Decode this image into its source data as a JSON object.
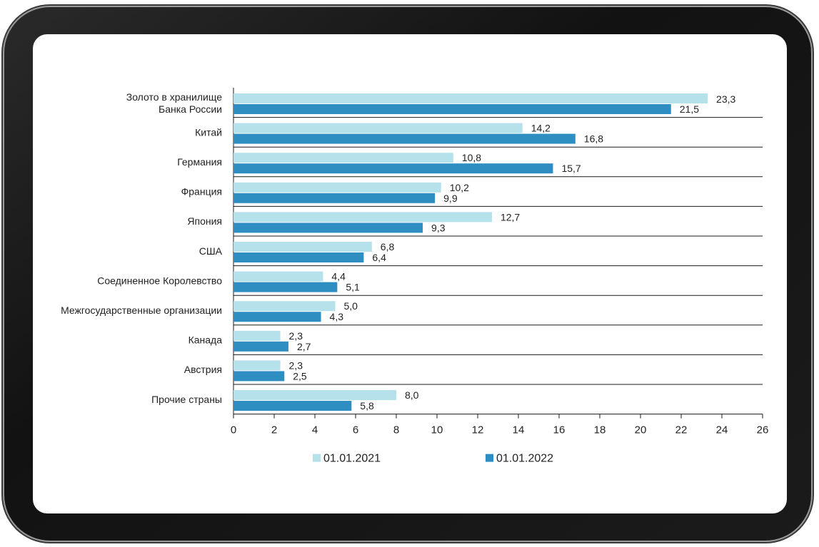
{
  "chart_data": {
    "type": "bar",
    "orientation": "horizontal",
    "categories": [
      [
        "Золото в хранилище",
        "Банка России"
      ],
      [
        "Китай"
      ],
      [
        "Германия"
      ],
      [
        "Франция"
      ],
      [
        "Япония"
      ],
      [
        "США"
      ],
      [
        "Соединенное Королевство"
      ],
      [
        "Межгосударственные организации"
      ],
      [
        "Канада"
      ],
      [
        "Австрия"
      ],
      [
        "Прочие страны"
      ]
    ],
    "series": [
      {
        "name": "01.01.2021",
        "color": "#b4e1ea",
        "values": [
          23.3,
          14.2,
          10.8,
          10.2,
          12.7,
          6.8,
          4.4,
          5.0,
          2.3,
          2.3,
          8.0
        ],
        "labels": [
          "23,3",
          "14,2",
          "10,8",
          "10,2",
          "12,7",
          "6,8",
          "4,4",
          "5,0",
          "2,3",
          "2,3",
          "8,0"
        ]
      },
      {
        "name": "01.01.2022",
        "color": "#2e8ec2",
        "values": [
          21.5,
          16.8,
          15.7,
          9.9,
          9.3,
          6.4,
          5.1,
          4.3,
          2.7,
          2.5,
          5.8
        ],
        "labels": [
          "21,5",
          "16,8",
          "15,7",
          "9,9",
          "9,3",
          "6,4",
          "5,1",
          "4,3",
          "2,7",
          "2,5",
          "5,8"
        ]
      }
    ],
    "xlim": [
      0,
      26
    ],
    "xticks": [
      0,
      2,
      4,
      6,
      8,
      10,
      12,
      14,
      16,
      18,
      20,
      22,
      24,
      26
    ],
    "legend_position": "bottom",
    "grid": false,
    "title": "",
    "xlabel": "",
    "ylabel": ""
  }
}
